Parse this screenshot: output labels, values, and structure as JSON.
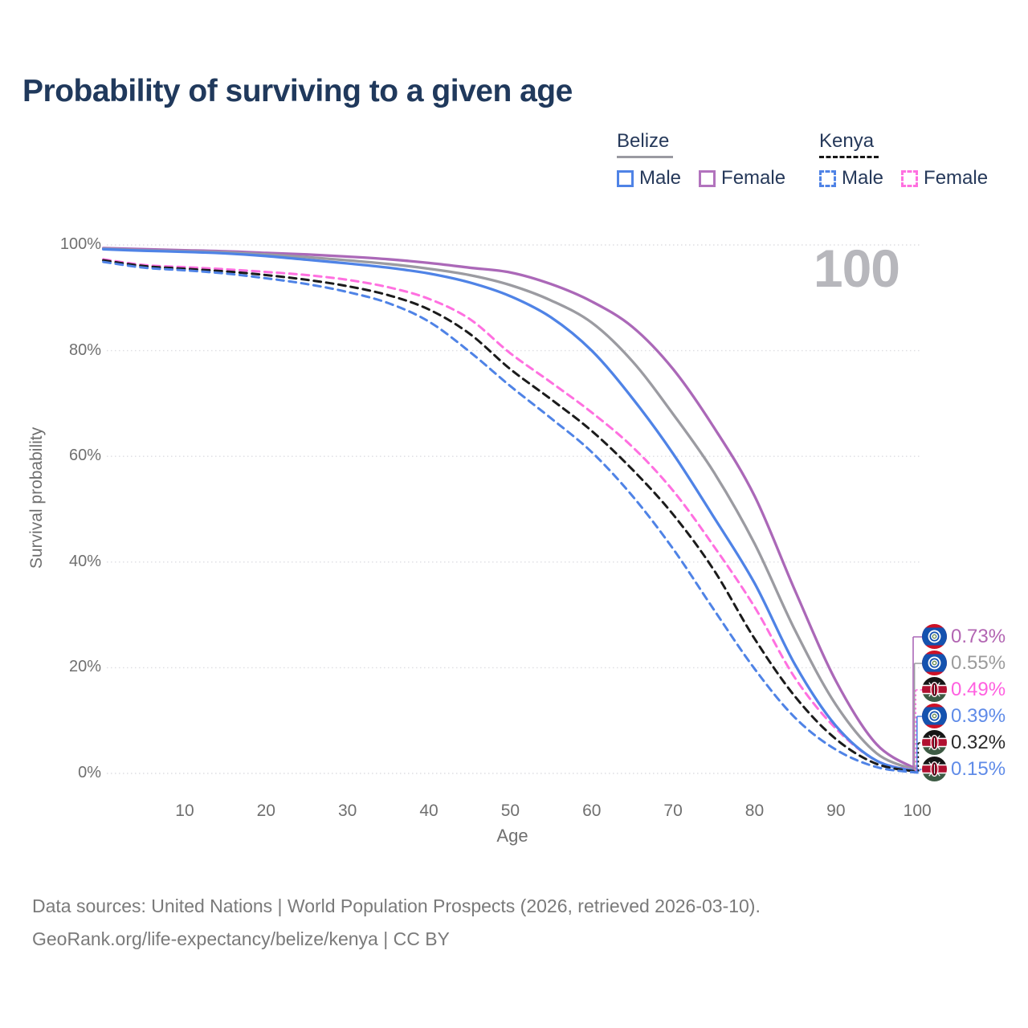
{
  "title": "Probability of surviving to a given age",
  "age_readout": "100",
  "legend": {
    "groups": [
      {
        "country": "Belize",
        "line_style": "solid",
        "underline_color": "#9a9aa1",
        "items": [
          {
            "label": "Male",
            "color": "#4f83e6"
          },
          {
            "label": "Female",
            "color": "#b273bd"
          }
        ]
      },
      {
        "country": "Kenya",
        "line_style": "dashed",
        "underline_color": "#161616",
        "items": [
          {
            "label": "Male",
            "color": "#4f83e6"
          },
          {
            "label": "Female",
            "color": "#ff70e0"
          }
        ]
      }
    ]
  },
  "chart_data": {
    "type": "line",
    "title": "Probability of surviving to a given age",
    "xlabel": "Age",
    "ylabel": "Survival probability",
    "xlim": [
      0,
      100
    ],
    "ylim": [
      0,
      100
    ],
    "x_ticks": [
      10,
      20,
      30,
      40,
      50,
      60,
      70,
      80,
      90,
      100
    ],
    "y_ticks": [
      0,
      20,
      40,
      60,
      80,
      100
    ],
    "y_tick_suffix": "%",
    "grid": "horizontal-dotted",
    "legend_position": "top-right",
    "x": [
      0,
      5,
      10,
      15,
      20,
      25,
      30,
      35,
      40,
      45,
      50,
      55,
      60,
      65,
      70,
      75,
      80,
      85,
      90,
      95,
      100
    ],
    "series": [
      {
        "name": "Belize Female",
        "country": "Belize",
        "sex": "Female",
        "color": "#ab68b8",
        "label_color": "#b265b2",
        "dash": "solid",
        "values": [
          99.4,
          99.2,
          99.0,
          98.8,
          98.5,
          98.2,
          97.8,
          97.3,
          96.6,
          95.7,
          94.8,
          92.6,
          89.3,
          84.5,
          76.5,
          65.5,
          52.5,
          34.5,
          17.5,
          5.5,
          0.73
        ],
        "end_label": "0.73%"
      },
      {
        "name": "Belize Both sexes",
        "country": "Belize",
        "sex": "Both",
        "color": "#9b9ba1",
        "label_color": "#9b9b9b",
        "dash": "solid",
        "values": [
          99.3,
          99.0,
          98.8,
          98.6,
          98.2,
          97.7,
          97.1,
          96.4,
          95.5,
          94.3,
          92.4,
          89.5,
          85.3,
          78.0,
          68.0,
          57.0,
          43.5,
          27.0,
          13.0,
          3.8,
          0.55
        ],
        "end_label": "0.55%"
      },
      {
        "name": "Kenya Female",
        "country": "Kenya",
        "sex": "Female",
        "color": "#ff70e0",
        "label_color": "#ff5fe0",
        "dash": "dashed",
        "values": [
          97.3,
          96.2,
          95.8,
          95.4,
          94.9,
          94.3,
          93.4,
          92.0,
          89.8,
          86.0,
          79.5,
          74.0,
          68.3,
          61.8,
          53.5,
          43.0,
          31.5,
          18.0,
          8.5,
          2.4,
          0.49
        ],
        "end_label": "0.49%"
      },
      {
        "name": "Belize Male",
        "country": "Belize",
        "sex": "Male",
        "color": "#4f83e6",
        "label_color": "#5f8be8",
        "dash": "solid",
        "values": [
          99.2,
          98.9,
          98.7,
          98.4,
          97.9,
          97.2,
          96.5,
          95.7,
          94.6,
          92.9,
          90.3,
          86.3,
          80.0,
          71.0,
          60.5,
          48.5,
          36.0,
          20.5,
          9.0,
          2.4,
          0.39
        ],
        "end_label": "0.39%"
      },
      {
        "name": "Kenya Both sexes",
        "country": "Kenya",
        "sex": "Both",
        "color": "#1b1b1b",
        "label_color": "#2a2a2a",
        "dash": "dashed",
        "values": [
          97.1,
          96.0,
          95.5,
          95.0,
          94.3,
          93.4,
          92.2,
          90.5,
          87.8,
          83.2,
          76.5,
          70.8,
          64.8,
          57.5,
          49.0,
          38.5,
          25.5,
          14.5,
          6.5,
          1.8,
          0.32
        ],
        "end_label": "0.32%"
      },
      {
        "name": "Kenya Male",
        "country": "Kenya",
        "sex": "Male",
        "color": "#4f83e6",
        "label_color": "#5f8be8",
        "dash": "dashed",
        "values": [
          96.8,
          95.7,
          95.2,
          94.6,
          93.7,
          92.6,
          91.1,
          89.0,
          85.5,
          79.8,
          73.3,
          67.2,
          60.8,
          52.5,
          42.5,
          31.0,
          19.8,
          10.5,
          4.5,
          1.2,
          0.15
        ],
        "end_label": "0.15%"
      }
    ],
    "annotations": {
      "hover_age": "100"
    }
  },
  "colors": {
    "grid": "#dedee2",
    "tick_text": "#6f6f6f",
    "title_text": "#20395c",
    "watermark": "#b7b7bc"
  },
  "footer": {
    "line1": "Data sources: United Nations | World Population Prospects (2026, retrieved 2026-03-10).",
    "line2": "GeoRank.org/life-expectancy/belize/kenya | CC BY"
  }
}
